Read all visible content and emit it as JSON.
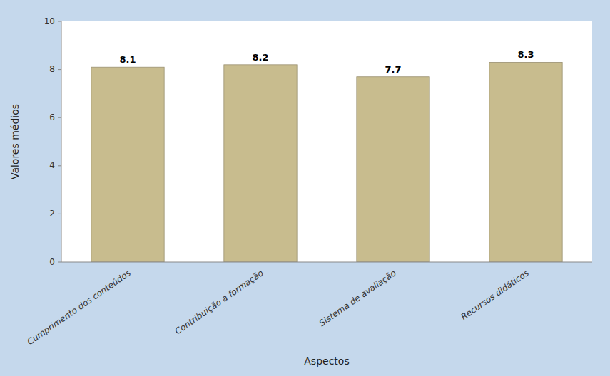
{
  "chart_data": {
    "type": "bar",
    "categories": [
      "Cumprimento dos conteúdos",
      "Contribuição a formação",
      "Sistema de avaliação",
      "Recursos didáticos"
    ],
    "values": [
      8.1,
      8.2,
      7.7,
      8.3
    ],
    "color": "#C8BC8E",
    "xlabel": "Aspectos",
    "ylabel": "Valores médios",
    "ylim": [
      0,
      10
    ],
    "yticks": [
      0,
      2,
      4,
      6,
      8,
      10
    ],
    "data_labels": true,
    "grid": false
  }
}
